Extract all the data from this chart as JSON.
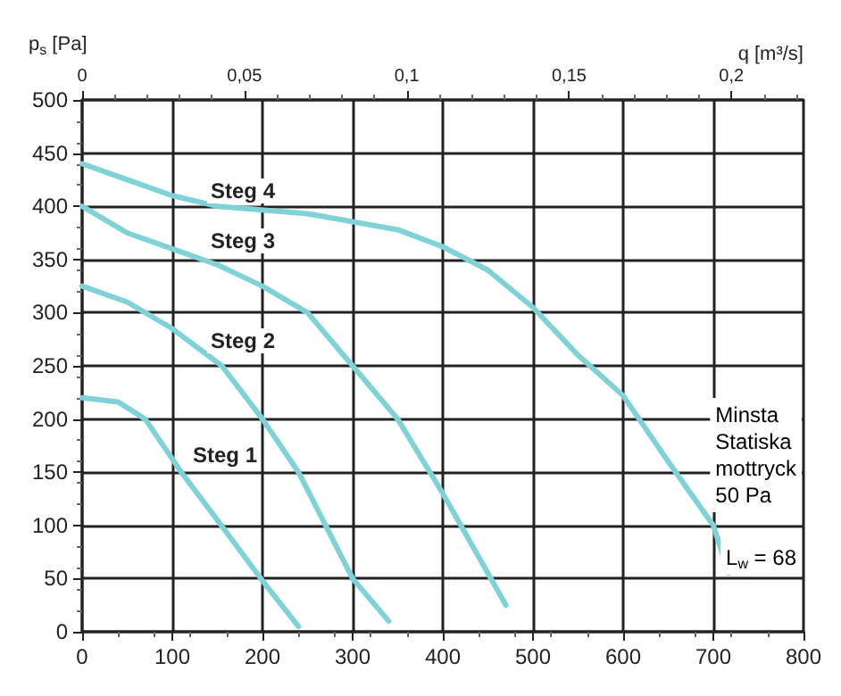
{
  "chart_data": {
    "type": "line",
    "ylabel": "p$_{s}$ [Pa]",
    "x2label": "q [m³/s]",
    "xlim": [
      0,
      800
    ],
    "xticks": [
      0,
      100,
      200,
      300,
      400,
      500,
      600,
      700,
      800
    ],
    "x2lim": [
      0,
      0.2222
    ],
    "x2ticks": [
      0,
      {
        "value": 0.05,
        "label": "0,05"
      },
      {
        "value": 0.1,
        "label": "0,1"
      },
      {
        "value": 0.15,
        "label": "0,15"
      },
      {
        "value": 0.2,
        "label": "0,2"
      }
    ],
    "ylim": [
      0,
      500
    ],
    "yticks": [
      0,
      50,
      100,
      150,
      200,
      250,
      300,
      350,
      400,
      450,
      500
    ],
    "grid": true,
    "marker": "none",
    "line_style": "solid",
    "series": [
      {
        "name": "Steg 1",
        "color": "#7fd3d8",
        "x": [
          0,
          40,
          70,
          110,
          150,
          200,
          240
        ],
        "values": [
          220,
          216,
          200,
          150,
          105,
          48,
          5
        ]
      },
      {
        "name": "Steg 2",
        "color": "#7fd3d8",
        "x": [
          0,
          50,
          100,
          155,
          200,
          240,
          300,
          340
        ],
        "values": [
          325,
          310,
          285,
          250,
          200,
          150,
          50,
          10
        ]
      },
      {
        "name": "Steg 3",
        "color": "#7fd3d8",
        "x": [
          0,
          50,
          100,
          150,
          200,
          250,
          300,
          350,
          400,
          440,
          470
        ],
        "values": [
          400,
          375,
          360,
          345,
          325,
          300,
          250,
          200,
          130,
          70,
          25
        ]
      },
      {
        "name": "Steg 4",
        "color": "#7fd3d8",
        "x": [
          0,
          50,
          100,
          150,
          250,
          350,
          400,
          450,
          500,
          550,
          600,
          650,
          700,
          717
        ],
        "values": [
          440,
          425,
          410,
          400,
          393,
          378,
          362,
          340,
          305,
          260,
          222,
          160,
          100,
          55
        ]
      }
    ],
    "annotations": [
      "Minsta\nStatiska\nmottryck\n50 Pa",
      "L$_{w}$ = 68"
    ]
  }
}
